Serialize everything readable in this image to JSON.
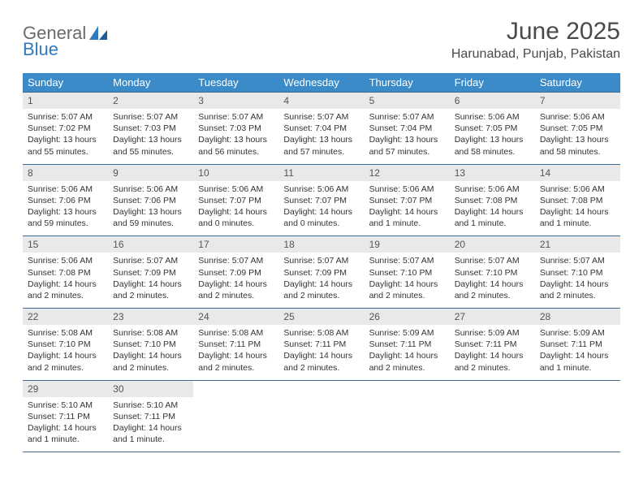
{
  "brand": {
    "part1": "General",
    "part2": "Blue"
  },
  "title": "June 2025",
  "location": "Harunabad, Punjab, Pakistan",
  "colors": {
    "header_bg": "#3b8bc8",
    "header_text": "#ffffff",
    "daynum_bg": "#e9e9e9",
    "border": "#3b6a94",
    "logo_gray": "#6a6a6a",
    "logo_blue": "#2f7bbf",
    "title_color": "#4a4a4a"
  },
  "weekdays": [
    "Sunday",
    "Monday",
    "Tuesday",
    "Wednesday",
    "Thursday",
    "Friday",
    "Saturday"
  ],
  "weeks": [
    [
      {
        "n": "1",
        "sr": "Sunrise: 5:07 AM",
        "ss": "Sunset: 7:02 PM",
        "dl": "Daylight: 13 hours and 55 minutes."
      },
      {
        "n": "2",
        "sr": "Sunrise: 5:07 AM",
        "ss": "Sunset: 7:03 PM",
        "dl": "Daylight: 13 hours and 55 minutes."
      },
      {
        "n": "3",
        "sr": "Sunrise: 5:07 AM",
        "ss": "Sunset: 7:03 PM",
        "dl": "Daylight: 13 hours and 56 minutes."
      },
      {
        "n": "4",
        "sr": "Sunrise: 5:07 AM",
        "ss": "Sunset: 7:04 PM",
        "dl": "Daylight: 13 hours and 57 minutes."
      },
      {
        "n": "5",
        "sr": "Sunrise: 5:07 AM",
        "ss": "Sunset: 7:04 PM",
        "dl": "Daylight: 13 hours and 57 minutes."
      },
      {
        "n": "6",
        "sr": "Sunrise: 5:06 AM",
        "ss": "Sunset: 7:05 PM",
        "dl": "Daylight: 13 hours and 58 minutes."
      },
      {
        "n": "7",
        "sr": "Sunrise: 5:06 AM",
        "ss": "Sunset: 7:05 PM",
        "dl": "Daylight: 13 hours and 58 minutes."
      }
    ],
    [
      {
        "n": "8",
        "sr": "Sunrise: 5:06 AM",
        "ss": "Sunset: 7:06 PM",
        "dl": "Daylight: 13 hours and 59 minutes."
      },
      {
        "n": "9",
        "sr": "Sunrise: 5:06 AM",
        "ss": "Sunset: 7:06 PM",
        "dl": "Daylight: 13 hours and 59 minutes."
      },
      {
        "n": "10",
        "sr": "Sunrise: 5:06 AM",
        "ss": "Sunset: 7:07 PM",
        "dl": "Daylight: 14 hours and 0 minutes."
      },
      {
        "n": "11",
        "sr": "Sunrise: 5:06 AM",
        "ss": "Sunset: 7:07 PM",
        "dl": "Daylight: 14 hours and 0 minutes."
      },
      {
        "n": "12",
        "sr": "Sunrise: 5:06 AM",
        "ss": "Sunset: 7:07 PM",
        "dl": "Daylight: 14 hours and 1 minute."
      },
      {
        "n": "13",
        "sr": "Sunrise: 5:06 AM",
        "ss": "Sunset: 7:08 PM",
        "dl": "Daylight: 14 hours and 1 minute."
      },
      {
        "n": "14",
        "sr": "Sunrise: 5:06 AM",
        "ss": "Sunset: 7:08 PM",
        "dl": "Daylight: 14 hours and 1 minute."
      }
    ],
    [
      {
        "n": "15",
        "sr": "Sunrise: 5:06 AM",
        "ss": "Sunset: 7:08 PM",
        "dl": "Daylight: 14 hours and 2 minutes."
      },
      {
        "n": "16",
        "sr": "Sunrise: 5:07 AM",
        "ss": "Sunset: 7:09 PM",
        "dl": "Daylight: 14 hours and 2 minutes."
      },
      {
        "n": "17",
        "sr": "Sunrise: 5:07 AM",
        "ss": "Sunset: 7:09 PM",
        "dl": "Daylight: 14 hours and 2 minutes."
      },
      {
        "n": "18",
        "sr": "Sunrise: 5:07 AM",
        "ss": "Sunset: 7:09 PM",
        "dl": "Daylight: 14 hours and 2 minutes."
      },
      {
        "n": "19",
        "sr": "Sunrise: 5:07 AM",
        "ss": "Sunset: 7:10 PM",
        "dl": "Daylight: 14 hours and 2 minutes."
      },
      {
        "n": "20",
        "sr": "Sunrise: 5:07 AM",
        "ss": "Sunset: 7:10 PM",
        "dl": "Daylight: 14 hours and 2 minutes."
      },
      {
        "n": "21",
        "sr": "Sunrise: 5:07 AM",
        "ss": "Sunset: 7:10 PM",
        "dl": "Daylight: 14 hours and 2 minutes."
      }
    ],
    [
      {
        "n": "22",
        "sr": "Sunrise: 5:08 AM",
        "ss": "Sunset: 7:10 PM",
        "dl": "Daylight: 14 hours and 2 minutes."
      },
      {
        "n": "23",
        "sr": "Sunrise: 5:08 AM",
        "ss": "Sunset: 7:10 PM",
        "dl": "Daylight: 14 hours and 2 minutes."
      },
      {
        "n": "24",
        "sr": "Sunrise: 5:08 AM",
        "ss": "Sunset: 7:11 PM",
        "dl": "Daylight: 14 hours and 2 minutes."
      },
      {
        "n": "25",
        "sr": "Sunrise: 5:08 AM",
        "ss": "Sunset: 7:11 PM",
        "dl": "Daylight: 14 hours and 2 minutes."
      },
      {
        "n": "26",
        "sr": "Sunrise: 5:09 AM",
        "ss": "Sunset: 7:11 PM",
        "dl": "Daylight: 14 hours and 2 minutes."
      },
      {
        "n": "27",
        "sr": "Sunrise: 5:09 AM",
        "ss": "Sunset: 7:11 PM",
        "dl": "Daylight: 14 hours and 2 minutes."
      },
      {
        "n": "28",
        "sr": "Sunrise: 5:09 AM",
        "ss": "Sunset: 7:11 PM",
        "dl": "Daylight: 14 hours and 1 minute."
      }
    ],
    [
      {
        "n": "29",
        "sr": "Sunrise: 5:10 AM",
        "ss": "Sunset: 7:11 PM",
        "dl": "Daylight: 14 hours and 1 minute."
      },
      {
        "n": "30",
        "sr": "Sunrise: 5:10 AM",
        "ss": "Sunset: 7:11 PM",
        "dl": "Daylight: 14 hours and 1 minute."
      },
      {
        "empty": true
      },
      {
        "empty": true
      },
      {
        "empty": true
      },
      {
        "empty": true
      },
      {
        "empty": true
      }
    ]
  ]
}
